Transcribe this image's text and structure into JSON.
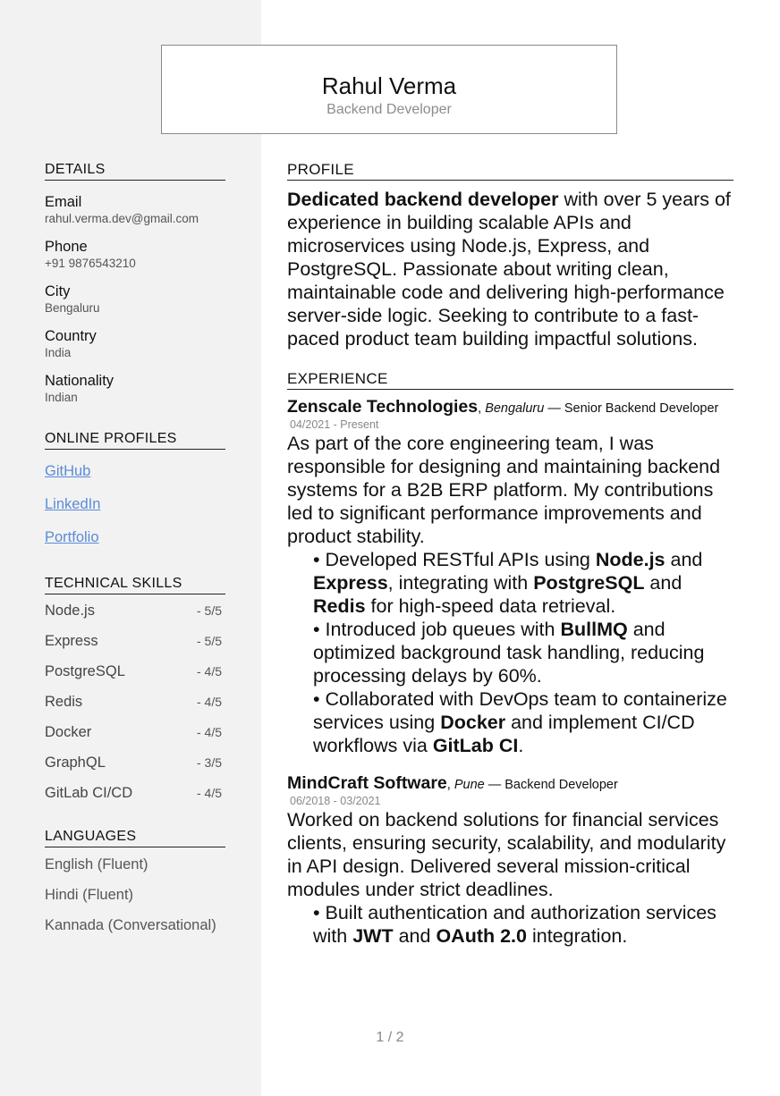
{
  "header": {
    "name": "Rahul Verma",
    "role": "Backend Developer"
  },
  "sidebar": {
    "details_heading": "DETAILS",
    "details": [
      {
        "label": "Email",
        "value": "rahul.verma.dev@gmail.com"
      },
      {
        "label": "Phone",
        "value": "+91 9876543210"
      },
      {
        "label": "City",
        "value": "Bengaluru"
      },
      {
        "label": "Country",
        "value": "India"
      },
      {
        "label": "Nationality",
        "value": "Indian"
      }
    ],
    "profiles_heading": "ONLINE PROFILES",
    "profiles": [
      "GitHub",
      "LinkedIn",
      "Portfolio"
    ],
    "skills_heading": "TECHNICAL SKILLS",
    "skills": [
      {
        "name": "Node.js",
        "level": "- 5/5"
      },
      {
        "name": "Express",
        "level": "- 5/5"
      },
      {
        "name": "PostgreSQL",
        "level": "- 4/5"
      },
      {
        "name": "Redis",
        "level": "- 4/5"
      },
      {
        "name": "Docker",
        "level": "- 4/5"
      },
      {
        "name": "GraphQL",
        "level": "- 3/5"
      },
      {
        "name": "GitLab CI/CD",
        "level": "- 4/5"
      }
    ],
    "languages_heading": "LANGUAGES",
    "languages": [
      "English (Fluent)",
      "Hindi (Fluent)",
      "Kannada (Conversational)"
    ]
  },
  "main": {
    "profile_heading": "PROFILE",
    "profile_bold": "Dedicated backend developer",
    "profile_rest": " with over 5 years of experience in building scalable APIs and microservices using Node.js, Express, and PostgreSQL. Passionate about writing clean, maintainable code and delivering high-performance server-side logic. Seeking to contribute to a fast-paced product team building impactful solutions.",
    "experience_heading": "EXPERIENCE",
    "jobs": [
      {
        "company": "Zenscale Technologies",
        "city": "Bengaluru",
        "title": "Senior Backend Developer",
        "dates": "04/2021 - Present",
        "description": "As part of the core engineering team, I was responsible for designing and maintaining backend systems for a B2B ERP platform. My contributions led to significant performance improvements and product stability.",
        "bullets": [
          [
            "• Developed RESTful APIs using ",
            "Node.js",
            " and ",
            "Express",
            ", integrating with ",
            "PostgreSQL",
            " and ",
            "Redis",
            " for high-speed data retrieval."
          ],
          [
            "• Introduced job queues with ",
            "BullMQ",
            " and optimized background task handling, reducing processing delays by 60%."
          ],
          [
            "• Collaborated with DevOps team to containerize services using ",
            "Docker",
            " and implement CI/CD workflows via ",
            "GitLab CI",
            "."
          ]
        ]
      },
      {
        "company": "MindCraft Software",
        "city": "Pune",
        "title": "Backend Developer",
        "dates": "06/2018 -  03/2021",
        "description": "Worked on backend solutions for financial services clients, ensuring security, scalability, and modularity in API design. Delivered several mission-critical modules under strict deadlines.",
        "bullets": [
          [
            "• Built authentication and authorization services with ",
            "JWT",
            " and ",
            "OAuth 2.0",
            " integration."
          ]
        ]
      }
    ]
  },
  "footer": {
    "page_number": "1 / 2"
  },
  "colors": {
    "sidebar_bg": "#f2f2f2",
    "link": "#5b8bd9"
  }
}
